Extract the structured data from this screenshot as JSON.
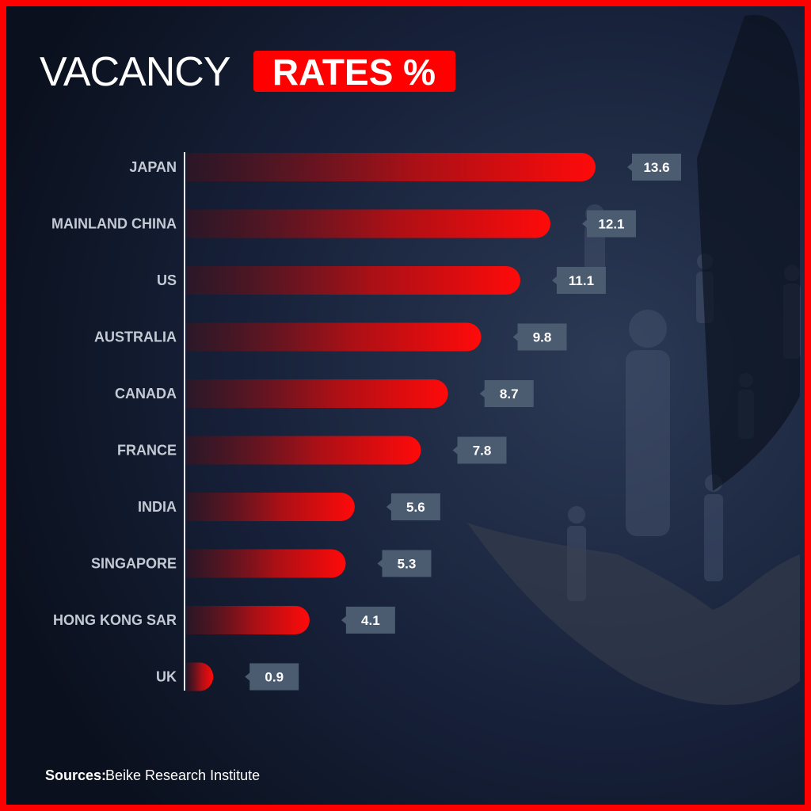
{
  "chart_data": {
    "type": "bar",
    "orientation": "horizontal",
    "title": "VACANCY",
    "title_highlight": "RATES %",
    "categories": [
      "JAPAN",
      "MAINLAND CHINA",
      "US",
      "AUSTRALIA",
      "CANADA",
      "FRANCE",
      "INDIA",
      "SINGAPORE",
      "HONG KONG SAR",
      "UK"
    ],
    "values": [
      13.6,
      12.1,
      11.1,
      9.8,
      8.7,
      7.8,
      5.6,
      5.3,
      4.1,
      0.9
    ],
    "color": "#ff0a0a",
    "source_label": "Sources:",
    "source": "Beike Research Institute"
  }
}
